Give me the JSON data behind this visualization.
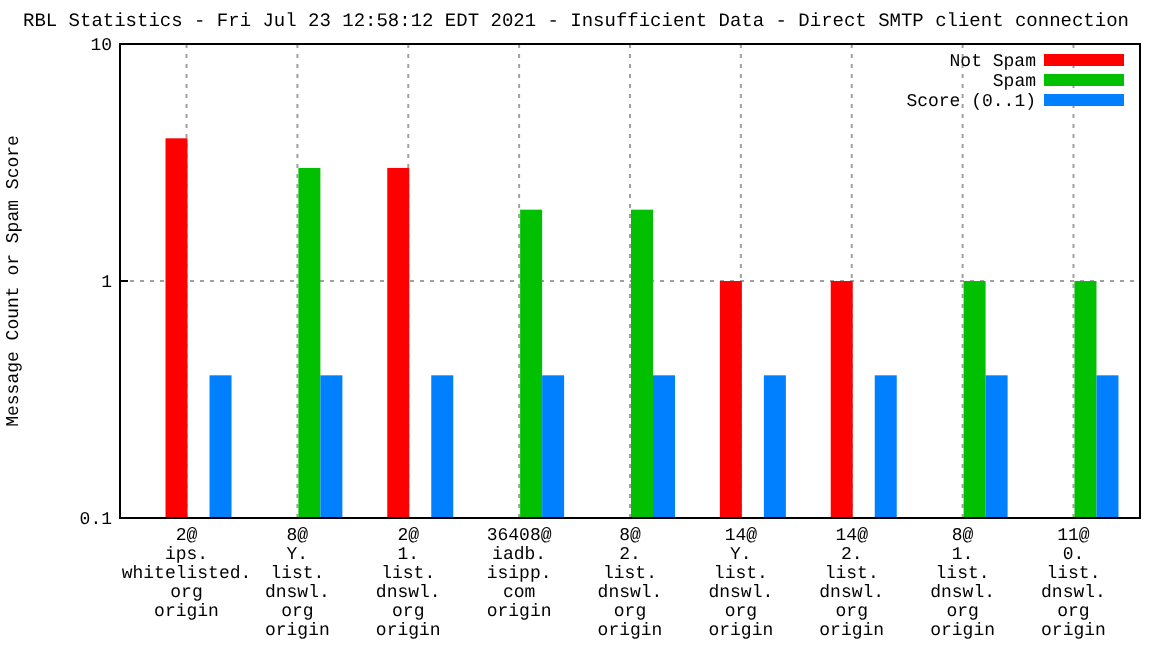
{
  "chart_data": {
    "type": "bar",
    "title": "RBL Statistics - Fri Jul 23 12:58:12 EDT 2021 - Insufficient Data - Direct SMTP client connection",
    "ylabel": "Message Count or Spam Score",
    "log": true,
    "grid": true,
    "legend": "top right",
    "categories": [
      "2@\nips.\nwhitelisted.\norg\norigin",
      "8@\nY.\nlist.\ndnswl.\norg\norigin",
      "2@\n1.\nlist.\ndnswl.\norg\norigin",
      "36408@\niadb.\nisipp.\ncom\norigin",
      "8@\n2.\nlist.\ndnswl.\norg\norigin",
      "14@\nY.\nlist.\ndnswl.\norg\norigin",
      "14@\n2.\nlist.\ndnswl.\norg\norigin",
      "8@\n1.\nlist.\ndnswl.\norg\norigin",
      "11@\n0.\nlist.\ndnswl.\norg\norigin"
    ],
    "ylim": [
      0.1,
      10
    ],
    "yticks": [
      0.1,
      1,
      10
    ],
    "series": [
      {
        "name": "Not Spam",
        "color": "#ff0000",
        "values": [
          4,
          null,
          3,
          null,
          null,
          1,
          1,
          null,
          null
        ]
      },
      {
        "name": "Spam",
        "color": "#00c000",
        "values": [
          null,
          3,
          null,
          2,
          2,
          null,
          null,
          1,
          1
        ]
      },
      {
        "name": "Score (0..1)",
        "color": "#0080ff",
        "values": [
          0.4,
          0.4,
          0.4,
          0.4,
          0.4,
          0.4,
          0.4,
          0.4,
          0.4
        ]
      }
    ]
  }
}
